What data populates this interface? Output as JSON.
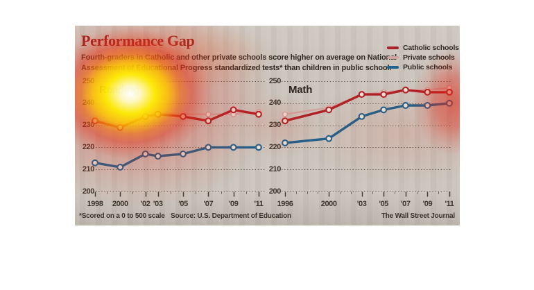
{
  "header": {
    "title": "Performance Gap",
    "subtitle_line1": "Fourth-graders in Catholic and other private schools score higher on average on National",
    "subtitle_line2": "Assessment of Educational Progress standardized tests* than children in public school."
  },
  "legend": {
    "position": "top-right",
    "items": [
      {
        "label": "Catholic schools",
        "color": "#a8222b"
      },
      {
        "label": "Private schools",
        "color": "#d2a49f"
      },
      {
        "label": "Public schools",
        "color": "#1e618c"
      }
    ]
  },
  "colors": {
    "panel_background": "#cac4bc",
    "grid": "#57503f",
    "axis_text": "#3b352b",
    "title_red": "#9c1b20",
    "marker_fill": "#ece5da"
  },
  "footnotes": {
    "scale_note": "*Scored on a 0 to 500 scale",
    "source": "Source: U.S. Department of Education",
    "credit": "The Wall Street Journal"
  },
  "chart_data": [
    {
      "type": "line",
      "title": "Reading",
      "x": [
        1998,
        2000,
        2002,
        2003,
        2005,
        2007,
        2009,
        2011
      ],
      "x_tick_labels": [
        "1998",
        "2000",
        "'02",
        "'03",
        "'05",
        "'07",
        "'09",
        "'11"
      ],
      "ylim": [
        200,
        250
      ],
      "yticks": [
        200,
        210,
        220,
        230,
        240,
        250
      ],
      "grid": "dotted-horizontal",
      "series": [
        {
          "name": "Catholic schools",
          "color": "#af2026",
          "values": [
            232,
            229,
            234,
            235,
            234,
            232,
            237,
            235
          ]
        },
        {
          "name": "Private schools",
          "color": "#d2a49f",
          "values": [
            233,
            230,
            234,
            236,
            235,
            235,
            235,
            236
          ]
        },
        {
          "name": "Public schools",
          "color": "#1e618c",
          "values": [
            213,
            211,
            217,
            216,
            217,
            220,
            220,
            220
          ]
        }
      ]
    },
    {
      "type": "line",
      "title": "Math",
      "x": [
        1996,
        2000,
        2003,
        2005,
        2007,
        2009,
        2011
      ],
      "x_tick_labels": [
        "1996",
        "2000",
        "'03",
        "'05",
        "'07",
        "'09",
        "'11"
      ],
      "ylim": [
        200,
        250
      ],
      "yticks": [
        200,
        210,
        220,
        230,
        240,
        250
      ],
      "grid": "dotted-horizontal",
      "series": [
        {
          "name": "Catholic schools",
          "color": "#af2026",
          "values": [
            232,
            237,
            244,
            244,
            246,
            245,
            245
          ]
        },
        {
          "name": "Private schools",
          "color": "#d2a49f",
          "values": [
            235,
            238,
            244,
            245,
            246,
            246,
            247
          ]
        },
        {
          "name": "Public schools",
          "color": "#1e618c",
          "values": [
            222,
            224,
            234,
            237,
            239,
            239,
            240
          ]
        }
      ]
    }
  ]
}
